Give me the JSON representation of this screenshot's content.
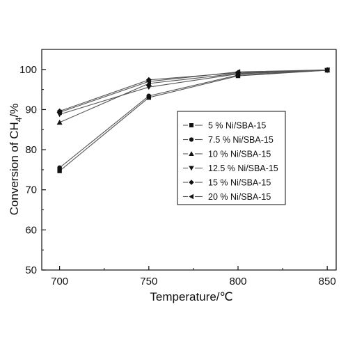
{
  "chart_data": {
    "type": "line",
    "title": "",
    "xlabel": "Temperature/℃",
    "ylabel": {
      "prefix": "Conversion of CH",
      "subscript": "4",
      "suffix": "/%"
    },
    "xlim": [
      690,
      855
    ],
    "ylim": [
      50,
      105
    ],
    "xticks": [
      700,
      750,
      800,
      850
    ],
    "yticks": [
      50,
      60,
      70,
      80,
      90,
      100
    ],
    "grid": false,
    "legend_position": "center-right",
    "x": [
      700,
      750,
      800,
      850
    ],
    "series": [
      {
        "name": "5 % Ni/SBA-15",
        "marker": "square",
        "values": [
          74.7,
          93.0,
          98.4,
          99.8
        ]
      },
      {
        "name": "7.5 % Ni/SBA-15",
        "marker": "circle",
        "values": [
          75.5,
          93.4,
          98.6,
          99.8
        ]
      },
      {
        "name": "10 % Ni/SBA-15",
        "marker": "triangle-up",
        "values": [
          86.8,
          96.5,
          99.0,
          99.9
        ]
      },
      {
        "name": "12.5 % Ni/SBA-15",
        "marker": "triangle-down",
        "values": [
          88.8,
          95.6,
          98.9,
          99.8
        ]
      },
      {
        "name": "15 % Ni/SBA-15",
        "marker": "diamond",
        "values": [
          89.6,
          97.4,
          99.2,
          99.9
        ]
      },
      {
        "name": "20 % Ni/SBA-15",
        "marker": "triangle-left",
        "values": [
          89.3,
          97.0,
          99.4,
          99.9
        ]
      }
    ],
    "colors": {
      "line": "#555555",
      "marker": "#111111",
      "axis": "#111111"
    }
  }
}
